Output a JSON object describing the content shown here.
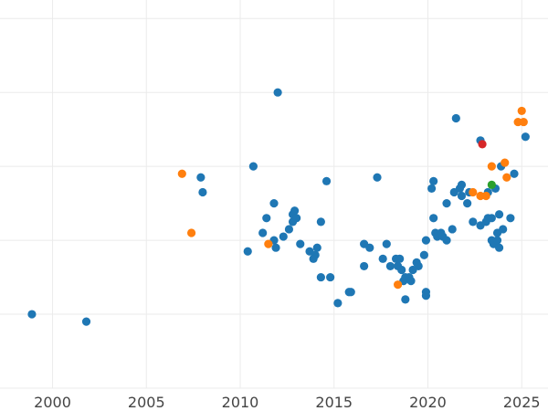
{
  "chart_data": {
    "type": "scatter",
    "title": "",
    "xlabel": "",
    "ylabel": "",
    "xlim": [
      1997.2,
      2026.4
    ],
    "ylim": [
      0,
      10.5
    ],
    "x_ticks": [
      2000,
      2005,
      2010,
      2015,
      2020,
      2025
    ],
    "x_tick_labels": [
      "2000",
      "2005",
      "2010",
      "2015",
      "2020",
      "2025"
    ],
    "y_gridlines": [
      0,
      2,
      4,
      6,
      8,
      10
    ],
    "grid": true,
    "legend": "none",
    "colors": {
      "blue": "#1f77b4",
      "orange": "#ff7f0e",
      "green": "#2ca02c",
      "red": "#d62728"
    },
    "series": [
      {
        "name": "blue",
        "color": "#1f77b4",
        "points": [
          [
            1998.9,
            2.0
          ],
          [
            2001.8,
            1.8
          ],
          [
            2007.9,
            5.7
          ],
          [
            2008.0,
            5.3
          ],
          [
            2010.4,
            3.7
          ],
          [
            2010.7,
            6.0
          ],
          [
            2011.2,
            4.2
          ],
          [
            2011.4,
            4.6
          ],
          [
            2011.8,
            4.0
          ],
          [
            2011.8,
            5.0
          ],
          [
            2011.9,
            3.8
          ],
          [
            2012.0,
            8.0
          ],
          [
            2012.3,
            4.1
          ],
          [
            2012.6,
            4.3
          ],
          [
            2012.8,
            4.5
          ],
          [
            2012.8,
            4.7
          ],
          [
            2012.9,
            4.8
          ],
          [
            2013.0,
            4.6
          ],
          [
            2013.2,
            3.9
          ],
          [
            2013.7,
            3.7
          ],
          [
            2013.9,
            3.5
          ],
          [
            2014.0,
            3.6
          ],
          [
            2014.1,
            3.8
          ],
          [
            2014.3,
            3.0
          ],
          [
            2014.3,
            4.5
          ],
          [
            2014.6,
            5.6
          ],
          [
            2014.8,
            3.0
          ],
          [
            2015.2,
            2.3
          ],
          [
            2015.8,
            2.6
          ],
          [
            2015.9,
            2.6
          ],
          [
            2016.6,
            3.3
          ],
          [
            2016.6,
            3.9
          ],
          [
            2016.9,
            3.8
          ],
          [
            2017.3,
            5.7
          ],
          [
            2017.6,
            3.5
          ],
          [
            2017.8,
            3.9
          ],
          [
            2018.0,
            3.3
          ],
          [
            2018.3,
            3.5
          ],
          [
            2018.4,
            3.3
          ],
          [
            2018.5,
            3.5
          ],
          [
            2018.6,
            3.2
          ],
          [
            2018.7,
            2.9
          ],
          [
            2018.8,
            2.4
          ],
          [
            2018.8,
            3.0
          ],
          [
            2019.0,
            3.0
          ],
          [
            2019.1,
            2.9
          ],
          [
            2019.2,
            3.2
          ],
          [
            2019.4,
            3.4
          ],
          [
            2019.5,
            3.3
          ],
          [
            2019.8,
            3.6
          ],
          [
            2019.9,
            2.5
          ],
          [
            2019.9,
            2.6
          ],
          [
            2019.9,
            4.0
          ],
          [
            2020.2,
            5.4
          ],
          [
            2020.3,
            5.6
          ],
          [
            2020.3,
            4.6
          ],
          [
            2020.4,
            4.2
          ],
          [
            2020.5,
            4.1
          ],
          [
            2020.7,
            4.2
          ],
          [
            2020.8,
            4.1
          ],
          [
            2021.0,
            4.0
          ],
          [
            2021.0,
            5.0
          ],
          [
            2021.3,
            4.3
          ],
          [
            2021.4,
            5.3
          ],
          [
            2021.5,
            7.3
          ],
          [
            2021.7,
            5.4
          ],
          [
            2021.8,
            5.5
          ],
          [
            2021.8,
            5.2
          ],
          [
            2022.1,
            5.0
          ],
          [
            2022.2,
            5.3
          ],
          [
            2022.4,
            4.5
          ],
          [
            2022.8,
            6.7
          ],
          [
            2022.8,
            4.4
          ],
          [
            2023.1,
            4.5
          ],
          [
            2023.2,
            4.6
          ],
          [
            2023.2,
            5.3
          ],
          [
            2023.4,
            4.6
          ],
          [
            2023.4,
            4.0
          ],
          [
            2023.5,
            3.9
          ],
          [
            2023.6,
            5.4
          ],
          [
            2023.7,
            4.2
          ],
          [
            2023.7,
            4.0
          ],
          [
            2023.8,
            3.8
          ],
          [
            2023.8,
            4.7
          ],
          [
            2023.9,
            6.0
          ],
          [
            2024.0,
            4.3
          ],
          [
            2024.4,
            4.6
          ],
          [
            2024.6,
            5.8
          ],
          [
            2025.2,
            6.8
          ]
        ]
      },
      {
        "name": "orange",
        "color": "#ff7f0e",
        "points": [
          [
            2006.9,
            5.8
          ],
          [
            2007.4,
            4.2
          ],
          [
            2011.5,
            3.9
          ],
          [
            2018.4,
            2.8
          ],
          [
            2022.4,
            5.3
          ],
          [
            2022.8,
            5.2
          ],
          [
            2023.1,
            5.2
          ],
          [
            2023.4,
            6.0
          ],
          [
            2024.1,
            6.1
          ],
          [
            2024.2,
            5.7
          ],
          [
            2024.8,
            7.2
          ],
          [
            2025.0,
            7.5
          ],
          [
            2025.1,
            7.2
          ]
        ]
      },
      {
        "name": "green",
        "color": "#2ca02c",
        "points": [
          [
            2023.4,
            5.5
          ]
        ]
      },
      {
        "name": "red",
        "color": "#d62728",
        "points": [
          [
            2022.9,
            6.6
          ]
        ]
      }
    ]
  }
}
